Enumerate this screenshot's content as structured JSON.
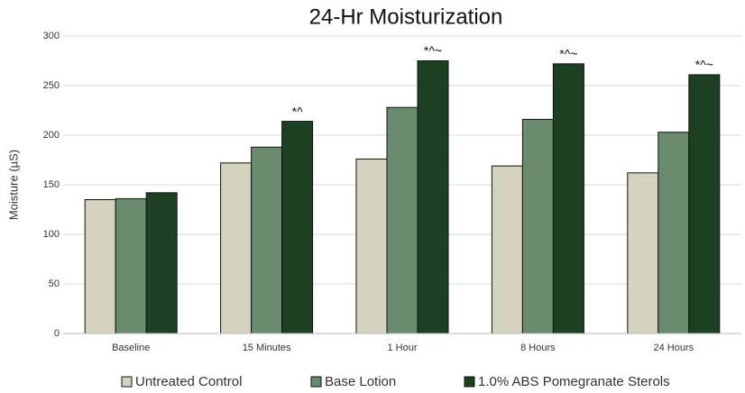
{
  "chart_data": {
    "type": "bar",
    "title": "24-Hr Moisturization",
    "y_label": "Moisture (µS)",
    "categories": [
      "Baseline",
      "15 Minutes",
      "1 Hour",
      "8 Hours",
      "24 Hours"
    ],
    "series": [
      {
        "name": "Untreated Control",
        "color": "#d4d3bf",
        "values": [
          135,
          172,
          176,
          169,
          162
        ]
      },
      {
        "name": "Base Lotion",
        "color": "#6a8b6e",
        "values": [
          136,
          188,
          228,
          216,
          203
        ]
      },
      {
        "name": "1.0% ABS Pomegranate Sterols",
        "color": "#1d4023",
        "values": [
          142,
          214,
          275,
          272,
          261
        ],
        "annotations": [
          null,
          "*^",
          "*^~",
          "*^~",
          "*^~"
        ]
      }
    ],
    "ylim": [
      0,
      300
    ],
    "yticks": [
      0,
      50,
      100,
      150,
      200,
      250,
      300
    ],
    "grid": true
  }
}
